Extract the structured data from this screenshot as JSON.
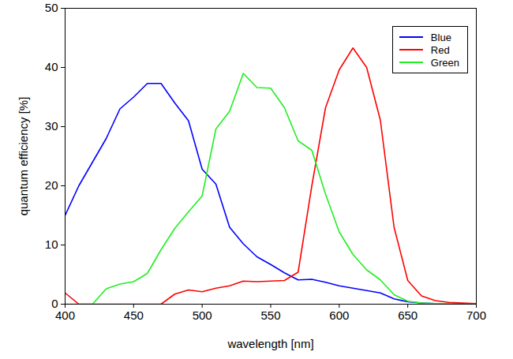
{
  "chart_data": {
    "type": "line",
    "xlabel": "wavelength [nm]",
    "ylabel": "quantum efficiency [%]",
    "x": [
      400,
      410,
      420,
      430,
      440,
      450,
      460,
      470,
      480,
      490,
      500,
      510,
      520,
      530,
      540,
      550,
      560,
      570,
      580,
      590,
      600,
      610,
      620,
      630,
      640,
      650,
      660,
      670,
      680,
      690,
      700
    ],
    "series": [
      {
        "name": "Blue",
        "color": "#0000ff",
        "values": [
          15,
          20,
          24,
          28,
          33,
          35,
          37.3,
          37.3,
          34,
          31,
          22.8,
          20.3,
          13,
          10.2,
          8,
          6.7,
          5.3,
          4.1,
          4.2,
          3.7,
          3.1,
          2.7,
          2.3,
          1.9,
          0.9,
          0.4,
          0.2,
          0.1,
          0.1,
          0.1,
          0.1
        ]
      },
      {
        "name": "Red",
        "color": "#ff0000",
        "values": [
          1.9,
          0,
          0,
          0,
          0,
          0,
          0,
          0,
          1.7,
          2.4,
          2.1,
          2.7,
          3.1,
          3.9,
          3.8,
          3.9,
          4,
          5.4,
          20,
          33.2,
          39.6,
          43.3,
          40,
          31.1,
          13,
          4,
          1.4,
          0.6,
          0.3,
          0.2,
          0.1
        ]
      },
      {
        "name": "Green",
        "color": "#22ee22",
        "values": [
          0,
          0,
          0,
          2.6,
          3.4,
          3.8,
          5.2,
          9.2,
          12.8,
          15.6,
          18.3,
          29.6,
          32.6,
          39,
          36.6,
          36.5,
          33.2,
          27.6,
          26,
          18.6,
          12.2,
          8.4,
          5.8,
          4.1,
          1.6,
          0.5,
          0.2,
          0.1,
          0.1,
          0,
          0
        ]
      }
    ],
    "xlim": [
      400,
      700
    ],
    "xticks": [
      400,
      450,
      500,
      550,
      600,
      650,
      700
    ],
    "ylim": [
      0,
      50
    ],
    "yticks": [
      0,
      10,
      20,
      30,
      40,
      50
    ],
    "grid": false,
    "legend": "top-right"
  }
}
